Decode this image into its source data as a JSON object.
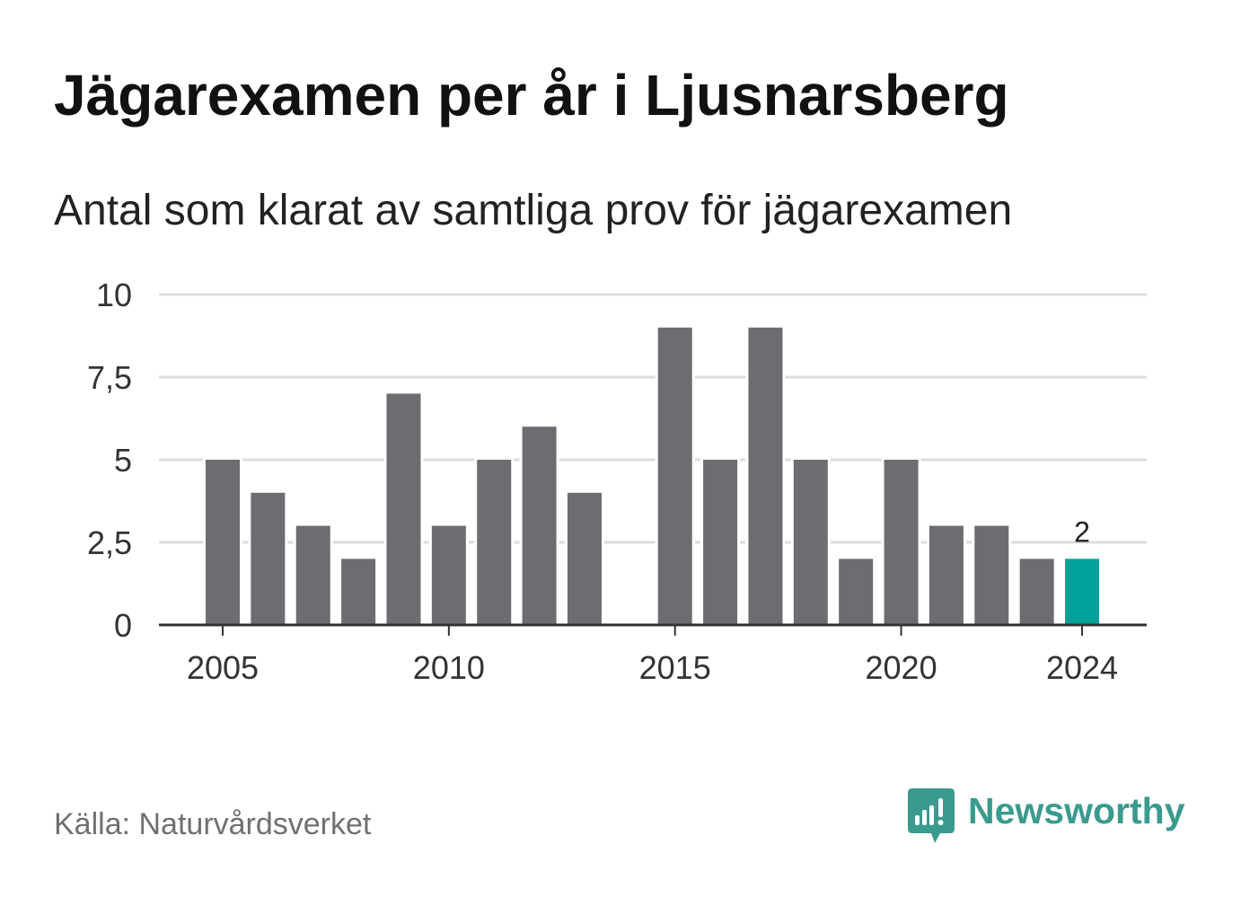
{
  "chart_data": {
    "type": "bar",
    "title": "Jägarexamen per år i Ljusnarsberg",
    "subtitle": "Antal som klarat av samtliga prov för jägarexamen",
    "x": [
      2005,
      2006,
      2007,
      2008,
      2009,
      2010,
      2011,
      2012,
      2013,
      2014,
      2015,
      2016,
      2017,
      2018,
      2019,
      2020,
      2021,
      2022,
      2023,
      2024
    ],
    "values": [
      5,
      4,
      3,
      2,
      7,
      3,
      5,
      6,
      4,
      null,
      9,
      5,
      9,
      5,
      2,
      5,
      3,
      3,
      2,
      2
    ],
    "ylim": [
      0,
      10
    ],
    "y_ticks": [
      {
        "value": 0,
        "label": "0"
      },
      {
        "value": 2.5,
        "label": "2,5"
      },
      {
        "value": 5,
        "label": "5"
      },
      {
        "value": 7.5,
        "label": "7,5"
      },
      {
        "value": 10,
        "label": "10"
      }
    ],
    "x_ticks": [
      2005,
      2010,
      2015,
      2020,
      2024
    ],
    "highlight": {
      "x": 2024,
      "label": "2"
    },
    "grid": true
  },
  "footer": {
    "source": "Källa: Naturvårdsverket"
  },
  "logo": {
    "text": "Newsworthy",
    "icon": "newsworthy-logo-icon",
    "color": "#3a9a8e"
  },
  "colors": {
    "bar": "#6d6c71",
    "highlight": "#00a29a",
    "grid": "#dcdcdc",
    "axis": "#333333",
    "axis_text": "#333333",
    "label_text": "#222222"
  }
}
